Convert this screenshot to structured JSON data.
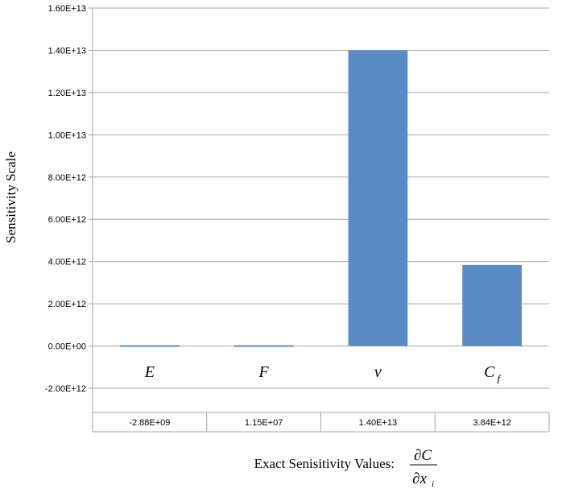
{
  "chart_data": {
    "type": "bar",
    "ylabel": "Sensitivity Scale",
    "xlabel": "Exact Senisitivity Values:",
    "xlabel_formula": {
      "numerator": "∂C",
      "denominator": "∂x",
      "denominator_subscript": "i"
    },
    "ylim": [
      -2000000000000.0,
      16000000000000.0
    ],
    "y_ticks": [
      {
        "value": 16000000000000.0,
        "label": "1.60E+13"
      },
      {
        "value": 14000000000000.0,
        "label": "1.40E+13"
      },
      {
        "value": 12000000000000.0,
        "label": "1.20E+13"
      },
      {
        "value": 10000000000000.0,
        "label": "1.00E+13"
      },
      {
        "value": 8000000000000.0,
        "label": "8.00E+12"
      },
      {
        "value": 6000000000000.0,
        "label": "6.00E+12"
      },
      {
        "value": 4000000000000.0,
        "label": "4.00E+12"
      },
      {
        "value": 2000000000000.0,
        "label": "2.00E+12"
      },
      {
        "value": 0,
        "label": "0.00E+00"
      },
      {
        "value": -2000000000000.0,
        "label": "-2.00E+12"
      }
    ],
    "categories": [
      {
        "symbol": "E",
        "sub": ""
      },
      {
        "symbol": "F",
        "sub": ""
      },
      {
        "symbol": "ν",
        "sub": ""
      },
      {
        "symbol": "C",
        "sub": "f"
      }
    ],
    "values": [
      -2880000000.0,
      11500000.0,
      14000000000000.0,
      3840000000000.0
    ],
    "data_table": [
      "-2.88E+09",
      "1.15E+07",
      "1.40E+13",
      "3.84E+12"
    ],
    "bar_color": "#5b8bc4",
    "grid": true,
    "legend": "none"
  }
}
